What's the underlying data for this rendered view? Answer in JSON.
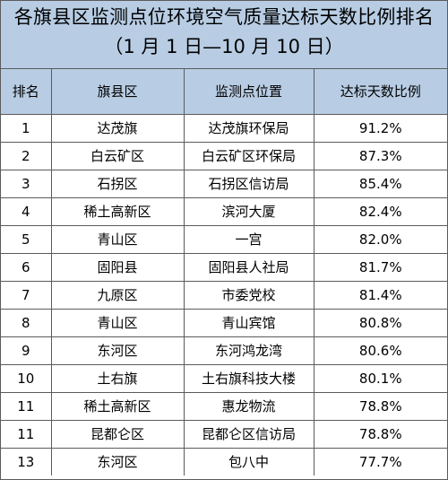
{
  "title": "各旗县区监测点位环境空气质量达标天数比例排名",
  "subtitle": "（1 月 1 日—10 月 10 日）",
  "headers": {
    "rank": "排名",
    "county": "旗县区",
    "site": "监测点位置",
    "ratio": "达标天数比例"
  },
  "rows": [
    {
      "rank": "1",
      "county": "达茂旗",
      "site": "达茂旗环保局",
      "ratio": "91.2%"
    },
    {
      "rank": "2",
      "county": "白云矿区",
      "site": "白云矿区环保局",
      "ratio": "87.3%"
    },
    {
      "rank": "3",
      "county": "石拐区",
      "site": "石拐区信访局",
      "ratio": "85.4%"
    },
    {
      "rank": "4",
      "county": "稀土高新区",
      "site": "滨河大厦",
      "ratio": "82.4%"
    },
    {
      "rank": "5",
      "county": "青山区",
      "site": "一宫",
      "ratio": "82.0%"
    },
    {
      "rank": "6",
      "county": "固阳县",
      "site": "固阳县人社局",
      "ratio": "81.7%"
    },
    {
      "rank": "7",
      "county": "九原区",
      "site": "市委党校",
      "ratio": "81.4%"
    },
    {
      "rank": "8",
      "county": "青山区",
      "site": "青山宾馆",
      "ratio": "80.8%"
    },
    {
      "rank": "9",
      "county": "东河区",
      "site": "东河鸿龙湾",
      "ratio": "80.6%"
    },
    {
      "rank": "10",
      "county": "土右旗",
      "site": "土右旗科技大楼",
      "ratio": "80.1%"
    },
    {
      "rank": "11",
      "county": "稀土高新区",
      "site": "惠龙物流",
      "ratio": "78.8%"
    },
    {
      "rank": "11",
      "county": "昆都仑区",
      "site": "昆都仑区信访局",
      "ratio": "78.8%"
    },
    {
      "rank": "13",
      "county": "东河区",
      "site": "包八中",
      "ratio": "77.7%"
    }
  ]
}
